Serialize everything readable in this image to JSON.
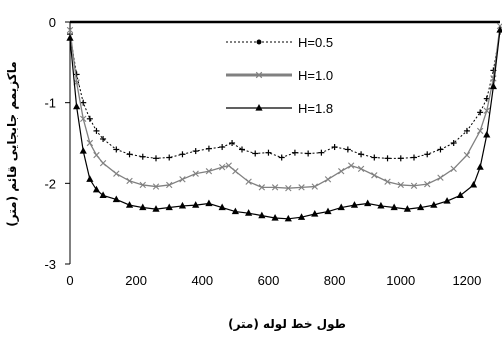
{
  "chart_data": {
    "type": "line",
    "xlabel": "طول خط لوله (متر)",
    "ylabel": "ماکزیمم جابجایی قائم (متر)",
    "xlim": [
      0,
      1300
    ],
    "ylim": [
      -3,
      0
    ],
    "xticks": [
      0,
      200,
      400,
      600,
      800,
      1000,
      1200
    ],
    "yticks": [
      0,
      -1,
      -2,
      -3
    ],
    "xtick_labels": [
      "0",
      "200",
      "400",
      "600",
      "800",
      "1000",
      "1200"
    ],
    "ytick_labels": [
      "0",
      "-1",
      "-2",
      "-3"
    ],
    "grid": false,
    "legend_position": "top-center",
    "series": [
      {
        "name": "H=0.5",
        "color": "#000000",
        "line_style": "dotted",
        "marker": "plus",
        "x": [
          0,
          20,
          40,
          60,
          80,
          100,
          140,
          180,
          220,
          260,
          300,
          340,
          380,
          420,
          460,
          490,
          520,
          560,
          600,
          640,
          680,
          720,
          760,
          800,
          840,
          880,
          920,
          960,
          1000,
          1040,
          1080,
          1120,
          1160,
          1200,
          1240,
          1260,
          1280,
          1300
        ],
        "y": [
          -0.15,
          -0.65,
          -1.0,
          -1.2,
          -1.35,
          -1.45,
          -1.58,
          -1.64,
          -1.67,
          -1.69,
          -1.68,
          -1.64,
          -1.6,
          -1.57,
          -1.55,
          -1.5,
          -1.58,
          -1.63,
          -1.62,
          -1.68,
          -1.62,
          -1.63,
          -1.62,
          -1.55,
          -1.58,
          -1.64,
          -1.68,
          -1.69,
          -1.69,
          -1.68,
          -1.64,
          -1.58,
          -1.5,
          -1.35,
          -1.12,
          -0.95,
          -0.6,
          -0.12
        ]
      },
      {
        "name": "H=1.0",
        "color": "#808080",
        "line_style": "solid",
        "marker": "x",
        "x": [
          0,
          20,
          40,
          60,
          80,
          100,
          140,
          180,
          220,
          260,
          300,
          340,
          380,
          420,
          460,
          480,
          500,
          540,
          580,
          620,
          660,
          700,
          740,
          780,
          820,
          850,
          880,
          920,
          960,
          1000,
          1040,
          1080,
          1120,
          1160,
          1200,
          1240,
          1260,
          1280,
          1300
        ],
        "y": [
          -0.1,
          -0.75,
          -1.2,
          -1.5,
          -1.65,
          -1.75,
          -1.88,
          -1.97,
          -2.02,
          -2.04,
          -2.02,
          -1.95,
          -1.88,
          -1.85,
          -1.8,
          -1.78,
          -1.85,
          -1.98,
          -2.05,
          -2.05,
          -2.06,
          -2.05,
          -2.04,
          -1.95,
          -1.85,
          -1.78,
          -1.82,
          -1.9,
          -1.98,
          -2.02,
          -2.03,
          -2.01,
          -1.93,
          -1.82,
          -1.65,
          -1.35,
          -1.1,
          -0.7,
          -0.05
        ]
      },
      {
        "name": "H=1.8",
        "color": "#000000",
        "line_style": "solid",
        "marker": "triangle",
        "x": [
          0,
          20,
          40,
          60,
          80,
          100,
          140,
          180,
          220,
          260,
          300,
          340,
          380,
          420,
          460,
          500,
          540,
          580,
          620,
          660,
          700,
          740,
          780,
          820,
          860,
          900,
          940,
          980,
          1020,
          1060,
          1100,
          1140,
          1180,
          1220,
          1240,
          1260,
          1280,
          1300
        ],
        "y": [
          -0.2,
          -1.05,
          -1.6,
          -1.95,
          -2.08,
          -2.15,
          -2.2,
          -2.27,
          -2.3,
          -2.32,
          -2.3,
          -2.28,
          -2.27,
          -2.25,
          -2.3,
          -2.35,
          -2.37,
          -2.4,
          -2.43,
          -2.44,
          -2.42,
          -2.38,
          -2.35,
          -2.3,
          -2.27,
          -2.25,
          -2.28,
          -2.3,
          -2.32,
          -2.3,
          -2.27,
          -2.22,
          -2.15,
          -2.02,
          -1.8,
          -1.4,
          -0.8,
          -0.1
        ]
      }
    ]
  }
}
